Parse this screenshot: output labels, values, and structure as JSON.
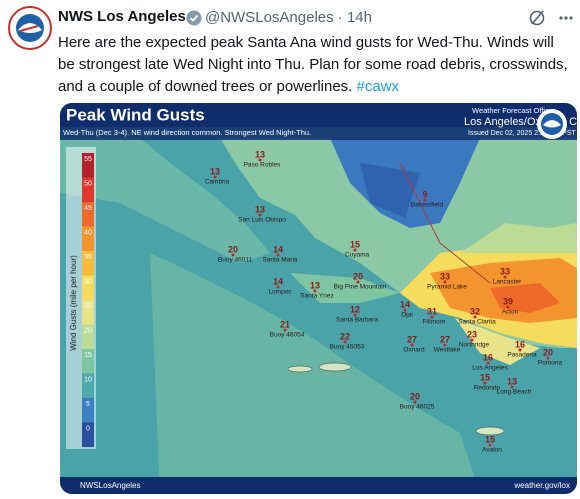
{
  "tweet": {
    "name": "NWS Los Angeles",
    "handle": "@NWSLosAngeles",
    "time": "14h",
    "text": "Here are the expected peak Santa Ana wind gusts for Wed-Thu.  Winds will be strongest late Wed Night into Thu. Plan for some road debris, crosswinds, and a couple of downed trees or powerlines.",
    "hashtag": "#cawx"
  },
  "map": {
    "title": "Peak Wind Gusts",
    "subtitle": "Wed-Thu (Dec 3-4). NE wind direction common. Strongest Wed Night-Thu.",
    "office": "Weather Forecast Office",
    "location": "Los Angeles/Oxnard, CA",
    "issued": "Issued Dec 02, 2025 2:31 PM PST",
    "legend_title": "Wind Gusts (mile per hour)",
    "legend": [
      {
        "value": 55,
        "color": "#b3202a"
      },
      {
        "value": 50,
        "color": "#e0392b"
      },
      {
        "value": 45,
        "color": "#ee6a2a"
      },
      {
        "value": 40,
        "color": "#f4942e"
      },
      {
        "value": 35,
        "color": "#f7bb3c"
      },
      {
        "value": 30,
        "color": "#f6dc5c"
      },
      {
        "value": 25,
        "color": "#e9e48a"
      },
      {
        "value": 20,
        "color": "#bcdb95"
      },
      {
        "value": 15,
        "color": "#7fc5a2"
      },
      {
        "value": 10,
        "color": "#4fa9ad"
      },
      {
        "value": 5,
        "color": "#3a7fbf"
      },
      {
        "value": 0,
        "color": "#2a4f9c"
      }
    ],
    "places": [
      {
        "value": 13,
        "name": "Paso Robles"
      },
      {
        "value": 13,
        "name": "Cambria"
      },
      {
        "value": 13,
        "name": "San Luis Obispo"
      },
      {
        "value": 9,
        "name": "Bakersfield"
      },
      {
        "value": 20,
        "name": "Buoy 46011"
      },
      {
        "value": 14,
        "name": "Santa Maria"
      },
      {
        "value": 15,
        "name": "Cuyama"
      },
      {
        "value": 14,
        "name": "Lompoc"
      },
      {
        "value": 13,
        "name": "Santa Ynez"
      },
      {
        "value": 20,
        "name": "Big Pine Mountain"
      },
      {
        "value": 12,
        "name": "Santa Barbara"
      },
      {
        "value": 14,
        "name": "Ojai"
      },
      {
        "value": 33,
        "name": "Pyramid Lake"
      },
      {
        "value": 33,
        "name": "Lancaster"
      },
      {
        "value": 39,
        "name": "Acton"
      },
      {
        "value": 31,
        "name": "Fillmore"
      },
      {
        "value": 32,
        "name": "Santa Clarita"
      },
      {
        "value": 23,
        "name": "Northridge"
      },
      {
        "value": 27,
        "name": "Oxnard"
      },
      {
        "value": 27,
        "name": "Westlake"
      },
      {
        "value": 21,
        "name": "Buoy 46054"
      },
      {
        "value": 22,
        "name": "Buoy 46053"
      },
      {
        "value": 16,
        "name": "Pasadena"
      },
      {
        "value": 20,
        "name": "Pomona"
      },
      {
        "value": 16,
        "name": "Los Angeles"
      },
      {
        "value": 15,
        "name": "Redondo"
      },
      {
        "value": 13,
        "name": "Long Beach"
      },
      {
        "value": 20,
        "name": "Buoy 46025"
      },
      {
        "value": 15,
        "name": "Avalon"
      }
    ],
    "footer_account": "NWSLosAngeles",
    "footer_url": "weather.gov/lox"
  }
}
